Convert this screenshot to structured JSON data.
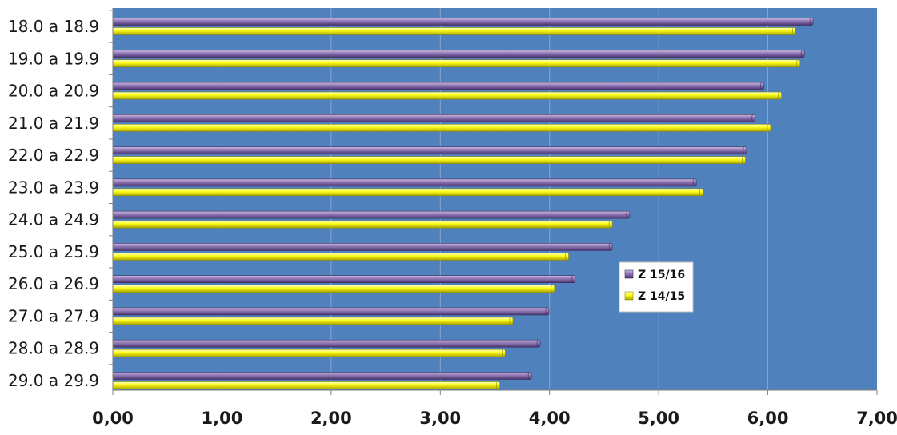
{
  "chart_data": {
    "type": "bar",
    "orientation": "horizontal",
    "categories": [
      "18.0 a 18.9",
      "19.0 a 19.9",
      "20.0 a 20.9",
      "21.0 a 21.9",
      "22.0 a 22.9",
      "23.0 a 23.9",
      "24.0 a 24.9",
      "25.0 a 25.9",
      "26.0 a 26.9",
      "27.0 a 27.9",
      "28.0 a 28.9",
      "29.0 a 29.9"
    ],
    "series": [
      {
        "name": "Z 15/16",
        "color": "#8064A2",
        "values": [
          6.4,
          6.32,
          5.95,
          5.87,
          5.79,
          5.33,
          4.72,
          4.56,
          4.22,
          3.98,
          3.9,
          3.82
        ]
      },
      {
        "name": "Z 14/15",
        "color": "#FFFF00",
        "values": [
          6.24,
          6.28,
          6.11,
          6.01,
          5.78,
          5.39,
          4.56,
          4.16,
          4.03,
          3.65,
          3.58,
          3.53
        ]
      }
    ],
    "x_ticks": [
      "0,00",
      "1,00",
      "2,00",
      "3,00",
      "4,00",
      "5,00",
      "6,00",
      "7,00"
    ],
    "xlim": [
      0,
      7
    ],
    "title": "",
    "xlabel": "",
    "ylabel": "",
    "grid": "vertical",
    "legend_position": "center-right",
    "plot_background": "#4F81BD"
  }
}
